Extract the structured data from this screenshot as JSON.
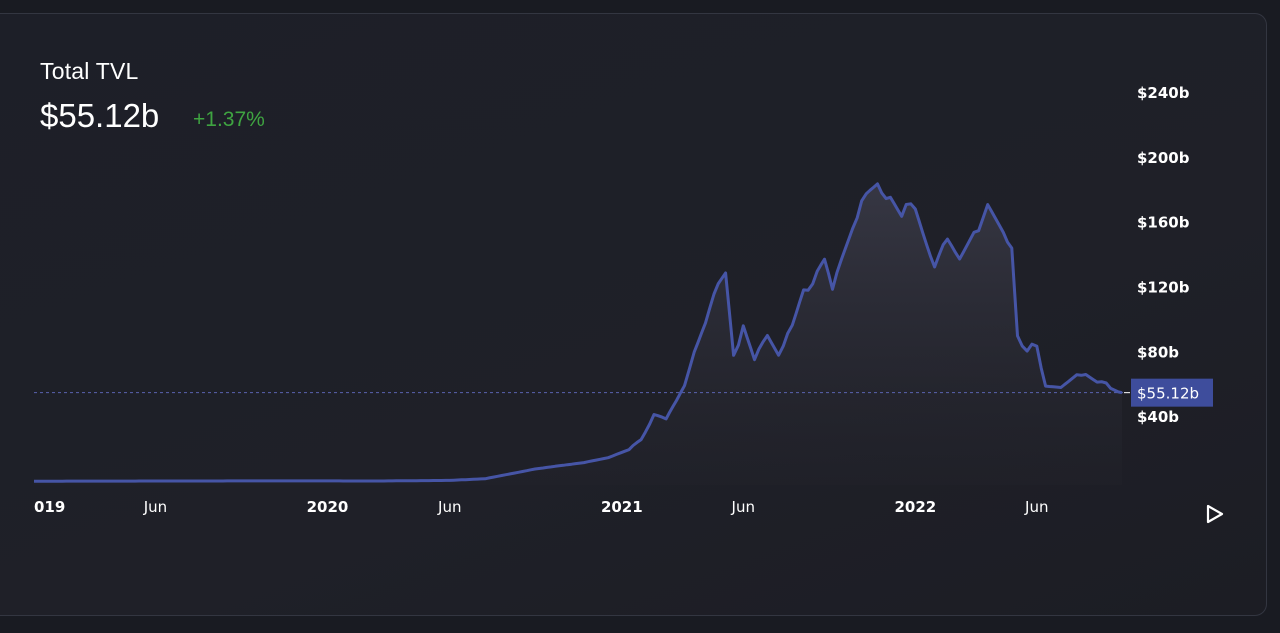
{
  "header": {
    "title": "Total TVL",
    "value": "$55.12b",
    "change": "+1.37%"
  },
  "controls": {
    "play_icon": "play-icon"
  },
  "colors": {
    "line": "#4655a6",
    "change_positive": "#3fa441",
    "price_label_bg": "#3e4d9c",
    "background": "#1d1f28"
  },
  "chart_data": {
    "type": "area",
    "series": [
      {
        "values_unit": "billion USD",
        "points": [
          [
            "2019-01-01",
            0.5
          ],
          [
            "2019-06-01",
            0.6
          ],
          [
            "2019-12-01",
            0.7
          ],
          [
            "2020-03-01",
            0.6
          ],
          [
            "2020-06-01",
            1
          ],
          [
            "2020-07-15",
            2
          ],
          [
            "2020-08-15",
            5
          ],
          [
            "2020-09-15",
            8
          ],
          [
            "2020-10-15",
            10
          ],
          [
            "2020-11-15",
            12
          ],
          [
            "2020-12-15",
            15
          ],
          [
            "2021-01-10",
            20
          ],
          [
            "2021-01-25",
            26
          ],
          [
            "2021-02-10",
            42
          ],
          [
            "2021-02-25",
            38
          ],
          [
            "2021-03-10",
            50
          ],
          [
            "2021-03-20",
            58
          ],
          [
            "2021-04-01",
            82
          ],
          [
            "2021-04-15",
            100
          ],
          [
            "2021-05-01",
            120
          ],
          [
            "2021-05-10",
            126
          ],
          [
            "2021-05-20",
            78
          ],
          [
            "2021-06-01",
            95
          ],
          [
            "2021-06-15",
            74
          ],
          [
            "2021-07-01",
            92
          ],
          [
            "2021-07-15",
            80
          ],
          [
            "2021-08-01",
            95
          ],
          [
            "2021-08-15",
            117
          ],
          [
            "2021-09-01",
            128
          ],
          [
            "2021-09-10",
            136
          ],
          [
            "2021-09-20",
            116
          ],
          [
            "2021-10-01",
            140
          ],
          [
            "2021-10-15",
            160
          ],
          [
            "2021-11-01",
            175
          ],
          [
            "2021-11-15",
            182
          ],
          [
            "2021-12-01",
            178
          ],
          [
            "2021-12-15",
            165
          ],
          [
            "2022-01-01",
            172
          ],
          [
            "2022-01-15",
            150
          ],
          [
            "2022-01-25",
            135
          ],
          [
            "2022-02-10",
            147
          ],
          [
            "2022-02-25",
            140
          ],
          [
            "2022-03-15",
            155
          ],
          [
            "2022-04-01",
            167
          ],
          [
            "2022-04-15",
            155
          ],
          [
            "2022-05-01",
            148
          ],
          [
            "2022-05-08",
            88
          ],
          [
            "2022-05-20",
            82
          ],
          [
            "2022-06-01",
            84
          ],
          [
            "2022-06-12",
            60
          ],
          [
            "2022-07-01",
            58
          ],
          [
            "2022-07-15",
            63
          ],
          [
            "2022-08-01",
            68
          ],
          [
            "2022-08-15",
            63
          ],
          [
            "2022-09-01",
            58
          ],
          [
            "2022-09-15",
            55.12
          ]
        ]
      }
    ],
    "x_ticks": [
      {
        "label": "019",
        "date": "2019-01-01",
        "year": true
      },
      {
        "label": "Jun",
        "date": "2019-06-01",
        "year": false
      },
      {
        "label": "2020",
        "date": "2020-01-01",
        "year": true
      },
      {
        "label": "Jun",
        "date": "2020-06-01",
        "year": false
      },
      {
        "label": "2021",
        "date": "2021-01-01",
        "year": true
      },
      {
        "label": "Jun",
        "date": "2021-06-01",
        "year": false
      },
      {
        "label": "2022",
        "date": "2022-01-01",
        "year": true
      },
      {
        "label": "Jun",
        "date": "2022-06-01",
        "year": false
      }
    ],
    "y_ticks": [
      {
        "label": "$240b",
        "value": 240
      },
      {
        "label": "$200b",
        "value": 200
      },
      {
        "label": "$160b",
        "value": 160
      },
      {
        "label": "$120b",
        "value": 120
      },
      {
        "label": "$80b",
        "value": 80
      },
      {
        "label": "$40b",
        "value": 40
      }
    ],
    "ylim": [
      0,
      240
    ],
    "xlim": [
      "2019-01-01",
      "2022-09-15"
    ],
    "current_value": 55.12,
    "current_label": "$55.12b",
    "grid": false
  }
}
